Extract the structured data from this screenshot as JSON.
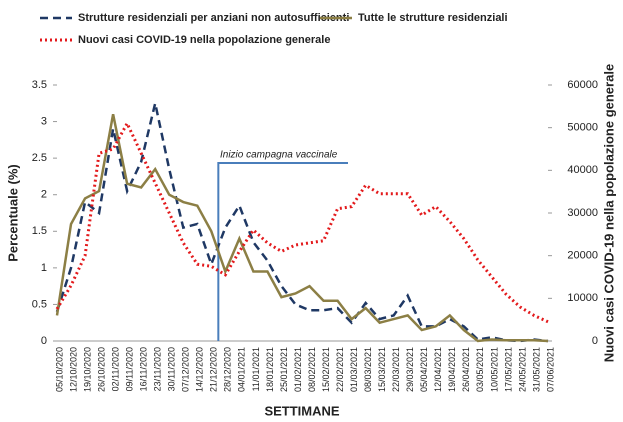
{
  "chart_data": {
    "type": "line",
    "categories": [
      "05/10/2020",
      "12/10/2020",
      "19/10/2020",
      "26/10/2020",
      "02/11/2020",
      "09/11/2020",
      "16/11/2020",
      "23/11/2020",
      "30/11/2020",
      "07/12/2020",
      "14/12/2020",
      "21/12/2020",
      "28/12/2020",
      "04/01/2021",
      "11/01/2021",
      "18/01/2021",
      "25/01/2021",
      "01/02/2021",
      "08/02/2021",
      "15/02/2021",
      "22/02/2021",
      "01/03/2021",
      "08/03/2021",
      "15/03/2021",
      "22/03/2021",
      "29/03/2021",
      "05/04/2021",
      "12/04/2021",
      "19/04/2021",
      "26/04/2021",
      "03/05/2021",
      "10/05/2021",
      "17/05/2021",
      "24/05/2021",
      "31/05/2021",
      "07/06/2021"
    ],
    "series": [
      {
        "name": "Strutture residenziali per anziani non autosufficienti",
        "color": "#1f3864",
        "dash": "dashed",
        "values": [
          0.4,
          1.0,
          1.9,
          1.75,
          2.9,
          2.05,
          2.45,
          3.25,
          2.35,
          1.55,
          1.6,
          1.05,
          1.55,
          1.85,
          1.35,
          1.1,
          0.75,
          0.5,
          0.42,
          0.42,
          0.45,
          0.25,
          0.52,
          0.3,
          0.35,
          0.62,
          0.2,
          0.2,
          0.3,
          0.2,
          0.02,
          0.05,
          0.01,
          0.0,
          0.02,
          0.0
        ]
      },
      {
        "name": "Tutte le strutture residenziali",
        "color": "#8c7f45",
        "dash": "solid",
        "values": [
          0.35,
          1.6,
          1.95,
          2.05,
          3.1,
          2.15,
          2.1,
          2.35,
          2.0,
          1.9,
          1.85,
          1.5,
          0.95,
          1.4,
          0.95,
          0.95,
          0.6,
          0.65,
          0.75,
          0.55,
          0.55,
          0.3,
          0.45,
          0.25,
          0.3,
          0.35,
          0.15,
          0.2,
          0.35,
          0.15,
          0.0,
          0.02,
          0.01,
          0.01,
          0.01,
          0.0
        ]
      },
      {
        "name": "Nuovi casi COVID-19 nella popolazione generale",
        "color": "#e31a1c",
        "dash": "dotted",
        "axis": "y2",
        "values": [
          7500,
          13000,
          20000,
          44000,
          45000,
          51000,
          44000,
          37000,
          30000,
          23000,
          18000,
          17500,
          15500,
          21000,
          26000,
          23000,
          21000,
          22500,
          23000,
          23500,
          31000,
          31500,
          36500,
          34500,
          34500,
          34500,
          29500,
          31500,
          28000,
          24000,
          19000,
          15000,
          11000,
          8000,
          6000,
          4500
        ]
      }
    ],
    "ylabel": "Percentuale (%)",
    "y2label": "Nuovi casi COVID-19 nella popolazione generale",
    "xlabel": "SETTIMANE",
    "ylim": [
      0,
      3.5
    ],
    "yticks": [
      0,
      0.5,
      1,
      1.5,
      2,
      2.5,
      3,
      3.5
    ],
    "y2lim": [
      0,
      60000
    ],
    "y2ticks": [
      0,
      10000,
      20000,
      30000,
      40000,
      50000,
      60000
    ],
    "annotation": "Inizio campagna vaccinale",
    "annotation_color": "#4a7ebb"
  }
}
